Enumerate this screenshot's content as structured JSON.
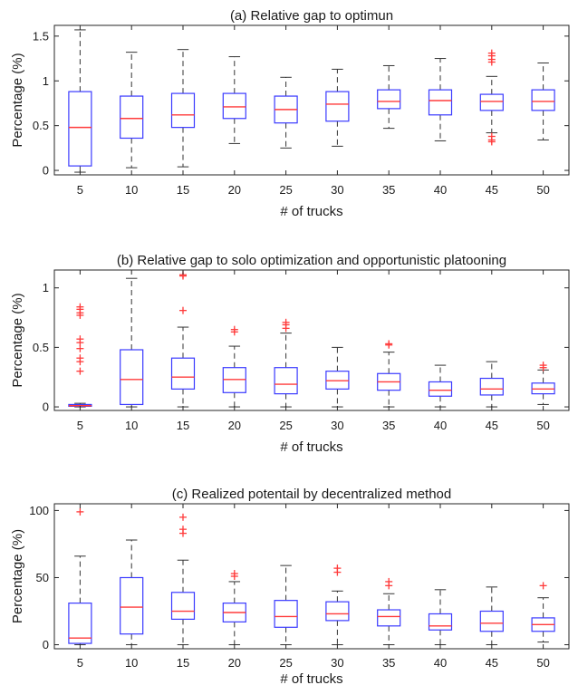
{
  "colors": {
    "box": "#3a3aff",
    "median": "#ff3b3b",
    "outlier": "#ff3b3b",
    "whisker": "#333333",
    "axis": "#262626"
  },
  "chart_data": [
    {
      "type": "box",
      "title": "(a) Relative gap to optimun",
      "xlabel": "# of trucks",
      "ylabel": "Percentage (%)",
      "ylim": [
        -0.05,
        1.62
      ],
      "yticks": [
        0,
        0.5,
        1,
        1.5
      ],
      "yticklabels": [
        "0",
        "0.5",
        "1",
        "1.5"
      ],
      "grid": false,
      "categories": [
        "5",
        "10",
        "15",
        "20",
        "25",
        "30",
        "35",
        "40",
        "45",
        "50"
      ],
      "boxes": [
        {
          "min": -0.02,
          "q1": 0.05,
          "median": 0.48,
          "q3": 0.88,
          "max": 1.57,
          "outliers": []
        },
        {
          "min": 0.03,
          "q1": 0.36,
          "median": 0.58,
          "q3": 0.83,
          "max": 1.32,
          "outliers": []
        },
        {
          "min": 0.04,
          "q1": 0.48,
          "median": 0.62,
          "q3": 0.86,
          "max": 1.35,
          "outliers": []
        },
        {
          "min": 0.3,
          "q1": 0.58,
          "median": 0.71,
          "q3": 0.86,
          "max": 1.27,
          "outliers": []
        },
        {
          "min": 0.25,
          "q1": 0.53,
          "median": 0.68,
          "q3": 0.83,
          "max": 1.04,
          "outliers": []
        },
        {
          "min": 0.27,
          "q1": 0.55,
          "median": 0.74,
          "q3": 0.88,
          "max": 1.13,
          "outliers": []
        },
        {
          "min": 0.47,
          "q1": 0.69,
          "median": 0.77,
          "q3": 0.9,
          "max": 1.17,
          "outliers": []
        },
        {
          "min": 0.33,
          "q1": 0.62,
          "median": 0.78,
          "q3": 0.9,
          "max": 1.25,
          "outliers": []
        },
        {
          "min": 0.42,
          "q1": 0.67,
          "median": 0.77,
          "q3": 0.85,
          "max": 1.05,
          "outliers": [
            1.31,
            1.28,
            1.24,
            1.21,
            0.38,
            0.34,
            0.32
          ]
        },
        {
          "min": 0.34,
          "q1": 0.67,
          "median": 0.77,
          "q3": 0.9,
          "max": 1.2,
          "outliers": []
        }
      ]
    },
    {
      "type": "box",
      "title": "(b) Relative gap to solo optimization and opportunistic platooning",
      "xlabel": "# of trucks",
      "ylabel": "Percentage (%)",
      "ylim": [
        -0.03,
        1.15
      ],
      "yticks": [
        0,
        0.5,
        1
      ],
      "yticklabels": [
        "0",
        "0.5",
        "1"
      ],
      "grid": false,
      "categories": [
        "5",
        "10",
        "15",
        "20",
        "25",
        "30",
        "35",
        "40",
        "45",
        "50"
      ],
      "boxes": [
        {
          "min": 0,
          "q1": 0.005,
          "median": 0.01,
          "q3": 0.02,
          "max": 0.03,
          "outliers": [
            0.84,
            0.82,
            0.79,
            0.77,
            0.57,
            0.54,
            0.49,
            0.41,
            0.38,
            0.3
          ]
        },
        {
          "min": 0,
          "q1": 0.02,
          "median": 0.23,
          "q3": 0.48,
          "max": 1.08,
          "outliers": []
        },
        {
          "min": 0,
          "q1": 0.15,
          "median": 0.25,
          "q3": 0.41,
          "max": 0.67,
          "outliers": [
            1.11,
            1.1,
            0.81
          ]
        },
        {
          "min": 0,
          "q1": 0.12,
          "median": 0.23,
          "q3": 0.33,
          "max": 0.51,
          "outliers": [
            0.65,
            0.63
          ]
        },
        {
          "min": 0,
          "q1": 0.11,
          "median": 0.19,
          "q3": 0.33,
          "max": 0.62,
          "outliers": [
            0.71,
            0.69,
            0.66
          ]
        },
        {
          "min": 0,
          "q1": 0.15,
          "median": 0.22,
          "q3": 0.3,
          "max": 0.5,
          "outliers": []
        },
        {
          "min": 0,
          "q1": 0.14,
          "median": 0.21,
          "q3": 0.28,
          "max": 0.46,
          "outliers": [
            0.53,
            0.52
          ]
        },
        {
          "min": 0,
          "q1": 0.09,
          "median": 0.14,
          "q3": 0.21,
          "max": 0.35,
          "outliers": []
        },
        {
          "min": 0,
          "q1": 0.1,
          "median": 0.15,
          "q3": 0.24,
          "max": 0.38,
          "outliers": []
        },
        {
          "min": 0.02,
          "q1": 0.11,
          "median": 0.15,
          "q3": 0.2,
          "max": 0.31,
          "outliers": [
            0.35,
            0.33
          ]
        }
      ]
    },
    {
      "type": "box",
      "title": "(c) Realized potentail by decentralized method",
      "xlabel": "# of trucks",
      "ylabel": "Percentage (%)",
      "ylim": [
        -3,
        105
      ],
      "yticks": [
        0,
        50,
        100
      ],
      "yticklabels": [
        "0",
        "50",
        "100"
      ],
      "grid": false,
      "categories": [
        "5",
        "10",
        "15",
        "20",
        "25",
        "30",
        "35",
        "40",
        "45",
        "50"
      ],
      "boxes": [
        {
          "min": 0,
          "q1": 1,
          "median": 5,
          "q3": 31,
          "max": 66,
          "outliers": [
            99
          ]
        },
        {
          "min": 0,
          "q1": 8,
          "median": 28,
          "q3": 50,
          "max": 78,
          "outliers": []
        },
        {
          "min": 0,
          "q1": 19,
          "median": 25,
          "q3": 39,
          "max": 63,
          "outliers": [
            95,
            86,
            83
          ]
        },
        {
          "min": 0,
          "q1": 17,
          "median": 24,
          "q3": 31,
          "max": 47,
          "outliers": [
            53,
            51
          ]
        },
        {
          "min": 0,
          "q1": 13,
          "median": 21,
          "q3": 33,
          "max": 59,
          "outliers": []
        },
        {
          "min": 0,
          "q1": 18,
          "median": 23,
          "q3": 32,
          "max": 40,
          "outliers": [
            57,
            54
          ]
        },
        {
          "min": 0,
          "q1": 14,
          "median": 21,
          "q3": 26,
          "max": 38,
          "outliers": [
            47,
            44
          ]
        },
        {
          "min": 0,
          "q1": 11,
          "median": 14,
          "q3": 23,
          "max": 41,
          "outliers": []
        },
        {
          "min": 0,
          "q1": 10,
          "median": 16,
          "q3": 25,
          "max": 43,
          "outliers": []
        },
        {
          "min": 2,
          "q1": 10,
          "median": 15,
          "q3": 20,
          "max": 35,
          "outliers": [
            44
          ]
        }
      ]
    }
  ]
}
